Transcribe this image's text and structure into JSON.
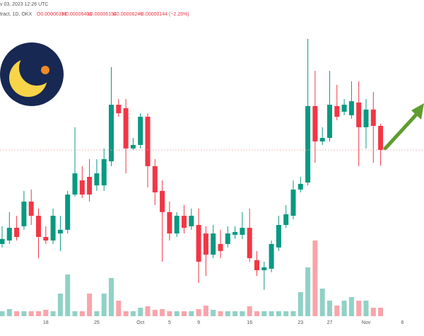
{
  "chart_data": {
    "type": "candlestick",
    "title": "v 03, 2023 12:26 UTC",
    "subtitle": "tract, 1D, OKX",
    "ohlc_labels": [
      "O0.00006393",
      "H0.00006406",
      "L0.00006154",
      "C0.00006249",
      "−0.00000144 (−2.25%)"
    ],
    "categories": [
      null,
      null,
      null,
      null,
      null,
      null,
      "18",
      null,
      null,
      null,
      null,
      null,
      null,
      "25",
      null,
      null,
      null,
      null,
      null,
      "Oct",
      null,
      null,
      null,
      "5",
      null,
      null,
      null,
      "9",
      null,
      null,
      null,
      null,
      null,
      null,
      "16",
      null,
      null,
      null,
      null,
      null,
      null,
      "23",
      null,
      null,
      null,
      "27",
      null,
      null,
      null,
      null,
      "Nov",
      null,
      null,
      null,
      null,
      "6"
    ],
    "open": [
      5.686e-05,
      5.707e-05,
      5.783e-05,
      5.792e-05,
      5.94e-05,
      5.855e-05,
      5.728e-05,
      5.707e-05,
      5.749e-05,
      5.771e-05,
      5.982e-05,
      6.067e-05,
      6.088e-05,
      6.037e-05,
      6.037e-05,
      6.181e-05,
      6.52e-05,
      6.499e-05,
      6.258e-05,
      6.279e-05,
      6.448e-05,
      6.152e-05,
      6.004e-05,
      5.877e-05,
      5.749e-05,
      5.855e-05,
      5.792e-05,
      5.8e-05,
      5.749e-05,
      5.622e-05,
      5.686e-05,
      5.686e-05,
      5.741e-05,
      5.741e-05,
      5.783e-05,
      5.589e-05,
      5.529e-05,
      5.538e-05,
      5.665e-05,
      5.8e-05,
      5.855e-05,
      6.012e-05,
      6.054e-05,
      6.512e-05,
      6.3e-05,
      6.321e-05,
      6.512e-05,
      6.478e-05,
      6.457e-05,
      6.533e-05,
      6.385e-05,
      6.491e-05,
      6.393e-05,
      null,
      null,
      null
    ],
    "high": [
      5.792e-05,
      5.877e-05,
      5.855e-05,
      6.004e-05,
      6.012e-05,
      5.898e-05,
      5.792e-05,
      5.898e-05,
      5.855e-05,
      6.004e-05,
      6.385e-05,
      6.152e-05,
      6.194e-05,
      6.194e-05,
      6.258e-05,
      6.745e-05,
      6.554e-05,
      6.554e-05,
      6.321e-05,
      6.469e-05,
      6.469e-05,
      6.194e-05,
      6.067e-05,
      5.94e-05,
      5.877e-05,
      5.919e-05,
      5.898e-05,
      5.898e-05,
      5.792e-05,
      5.8e-05,
      5.771e-05,
      5.792e-05,
      5.792e-05,
      5.877e-05,
      5.898e-05,
      5.644e-05,
      5.58e-05,
      5.707e-05,
      5.855e-05,
      5.919e-05,
      6.067e-05,
      6.088e-05,
      6.914e-05,
      6.723e-05,
      6.385e-05,
      6.723e-05,
      6.639e-05,
      6.554e-05,
      6.66e-05,
      6.66e-05,
      6.554e-05,
      6.596e-05,
      6.406e-05,
      null,
      null,
      null
    ],
    "low": [
      5.665e-05,
      5.686e-05,
      5.707e-05,
      5.771e-05,
      5.8e-05,
      5.601e-05,
      5.686e-05,
      5.686e-05,
      5.644e-05,
      5.749e-05,
      5.97e-05,
      5.961e-05,
      5.94e-05,
      6.004e-05,
      6.004e-05,
      6.152e-05,
      6.448e-05,
      6.109e-05,
      6.249e-05,
      6.258e-05,
      6.025e-05,
      5.919e-05,
      5.58e-05,
      5.707e-05,
      5.728e-05,
      5.749e-05,
      5.771e-05,
      5.453e-05,
      5.495e-05,
      5.601e-05,
      5.601e-05,
      5.665e-05,
      5.716e-05,
      5.716e-05,
      5.58e-05,
      5.495e-05,
      5.411e-05,
      5.517e-05,
      5.644e-05,
      5.783e-05,
      5.834e-05,
      5.995e-05,
      6.037e-05,
      6.173e-05,
      6.279e-05,
      6.3e-05,
      6.427e-05,
      6.457e-05,
      6.436e-05,
      6.152e-05,
      6.258e-05,
      6.173e-05,
      6.154e-05,
      null,
      null,
      null
    ],
    "close": [
      5.716e-05,
      5.783e-05,
      5.728e-05,
      5.94e-05,
      5.855e-05,
      5.728e-05,
      5.707e-05,
      5.855e-05,
      5.771e-05,
      5.982e-05,
      6.109e-05,
      5.982e-05,
      5.982e-05,
      6.109e-05,
      6.194e-05,
      6.52e-05,
      6.469e-05,
      6.258e-05,
      6.279e-05,
      6.448e-05,
      6.152e-05,
      5.995e-05,
      5.877e-05,
      5.749e-05,
      5.855e-05,
      5.783e-05,
      5.855e-05,
      5.58e-05,
      5.622e-05,
      5.749e-05,
      5.644e-05,
      5.749e-05,
      5.758e-05,
      5.783e-05,
      5.601e-05,
      5.529e-05,
      5.546e-05,
      5.686e-05,
      5.8e-05,
      5.864e-05,
      6.012e-05,
      6.046e-05,
      6.512e-05,
      6.3e-05,
      6.321e-05,
      6.52e-05,
      6.448e-05,
      6.52e-05,
      6.541e-05,
      6.385e-05,
      6.491e-05,
      6.393e-05,
      6.249e-05,
      null,
      null,
      null
    ],
    "volume": [
      7,
      10,
      7,
      7,
      7,
      7,
      9,
      7,
      32,
      59,
      7,
      7,
      32,
      7,
      32,
      54,
      22,
      7,
      7,
      12,
      14,
      9,
      10,
      7,
      7,
      7,
      7,
      10,
      15,
      9,
      7,
      7,
      7,
      7,
      14,
      7,
      7,
      7,
      7,
      7,
      7,
      34,
      69,
      107,
      39,
      22,
      15,
      22,
      27,
      22,
      22,
      12,
      12,
      null,
      null,
      null
    ],
    "ylim": [
      5.135e-05,
      7.147e-05
    ],
    "vlim": [
      0,
      120
    ],
    "up_color": "#089981",
    "down_color": "#f23645"
  }
}
